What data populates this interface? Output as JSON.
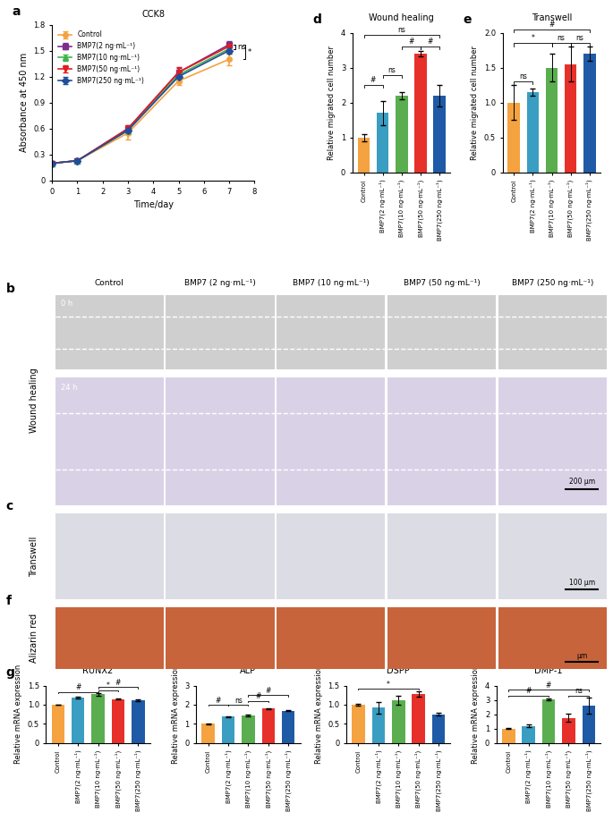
{
  "chart_data": [
    {
      "panel": "a",
      "type": "line",
      "title": "CCK8",
      "x_label": "Time/day",
      "y_label": "Absorbance at 450 nm",
      "x": [
        0,
        1,
        3,
        5,
        7
      ],
      "xlim": [
        0,
        8
      ],
      "xticks": [
        0,
        1,
        2,
        3,
        4,
        5,
        6,
        7,
        8
      ],
      "ylim": [
        0,
        1.8
      ],
      "yticks": [
        0,
        0.3,
        0.6,
        0.9,
        1.2,
        1.5,
        1.8
      ],
      "legend": "upper left",
      "series": [
        {
          "name": "Control",
          "color": "#F4A340",
          "marker": "circle",
          "values": [
            0.2,
            0.23,
            0.55,
            1.15,
            1.4
          ],
          "errors": [
            0.01,
            0.01,
            0.08,
            0.05,
            0.07
          ]
        },
        {
          "name": "BMP7(2 ng·mL⁻¹)",
          "color": "#7B2D8E",
          "marker": "square",
          "values": [
            0.2,
            0.23,
            0.6,
            1.25,
            1.57
          ],
          "errors": [
            0.01,
            0.01,
            0.04,
            0.05,
            0.04
          ]
        },
        {
          "name": "BMP7(10 ng·mL⁻¹)",
          "color": "#3CB44B",
          "marker": "triangle_up",
          "values": [
            0.2,
            0.23,
            0.58,
            1.22,
            1.52
          ],
          "errors": [
            0.01,
            0.01,
            0.04,
            0.05,
            0.04
          ]
        },
        {
          "name": "BMP7(50 ng·mL⁻¹)",
          "color": "#E41A1C",
          "marker": "triangle_down",
          "values": [
            0.2,
            0.23,
            0.6,
            1.25,
            1.55
          ],
          "errors": [
            0.01,
            0.01,
            0.04,
            0.06,
            0.04
          ]
        },
        {
          "name": "BMP7(250 ng·mL⁻¹)",
          "color": "#1F4E9C",
          "marker": "diamond",
          "values": [
            0.2,
            0.23,
            0.58,
            1.2,
            1.5
          ],
          "errors": [
            0.01,
            0.01,
            0.04,
            0.05,
            0.04
          ]
        }
      ],
      "significance": [
        {
          "text": "ns",
          "x": 7,
          "y": [
            1.52,
            1.57
          ]
        },
        {
          "text": "*",
          "x": 7,
          "y": [
            1.4,
            1.57
          ]
        }
      ]
    },
    {
      "panel": "d",
      "type": "bar",
      "title": "Wound healing",
      "y_label": "Relative migrated cell number",
      "categories": [
        "Control",
        "BMP7(2 ng·mL⁻¹)",
        "BMP7(10 ng·mL⁻¹)",
        "BMP7(50 ng·mL⁻¹)",
        "BMP7(250 ng·mL⁻¹)"
      ],
      "values": [
        1.0,
        1.7,
        2.2,
        3.4,
        2.2
      ],
      "errors": [
        0.1,
        0.35,
        0.1,
        0.08,
        0.3
      ],
      "colors": [
        "#F4A340",
        "#3A9EC2",
        "#5BAE4F",
        "#E8302A",
        "#1F5AA6"
      ],
      "ylim": [
        0,
        4
      ],
      "yticks": [
        0,
        1,
        2,
        3,
        4
      ],
      "significance": [
        {
          "pair": [
            0,
            1
          ],
          "y": 2.5,
          "text": "#"
        },
        {
          "pair": [
            1,
            2
          ],
          "y": 2.8,
          "text": "ns"
        },
        {
          "pair": [
            2,
            3
          ],
          "y": 3.6,
          "text": "#"
        },
        {
          "pair": [
            3,
            4
          ],
          "y": 3.6,
          "text": "#"
        },
        {
          "pair": [
            0,
            4
          ],
          "y": 3.95,
          "text": "ns"
        }
      ]
    },
    {
      "panel": "e",
      "type": "bar",
      "title": "Transwell",
      "y_label": "Relative migrated cell number",
      "categories": [
        "Control",
        "BMP7(2 ng·mL⁻¹)",
        "BMP7(10 ng·mL⁻¹)",
        "BMP7(50 ng·mL⁻¹)",
        "BMP7(250 ng·mL⁻¹)"
      ],
      "values": [
        1.0,
        1.15,
        1.5,
        1.55,
        1.7
      ],
      "errors": [
        0.25,
        0.05,
        0.2,
        0.25,
        0.1
      ],
      "colors": [
        "#F4A340",
        "#3A9EC2",
        "#5BAE4F",
        "#E8302A",
        "#1F5AA6"
      ],
      "ylim": [
        0,
        2
      ],
      "yticks": [
        0,
        0.5,
        {
          "value": 1,
          "label": "1.0"
        },
        1.5,
        {
          "value": 2,
          "label": "2.0"
        }
      ],
      "significance": [
        {
          "pair": [
            0,
            1
          ],
          "y": 1.3,
          "text": "ns"
        },
        {
          "pair": [
            0,
            2
          ],
          "y": 1.85,
          "text": "*"
        },
        {
          "pair": [
            2,
            3
          ],
          "y": 1.85,
          "text": "ns"
        },
        {
          "pair": [
            3,
            4
          ],
          "y": 1.85,
          "text": "ns"
        },
        {
          "pair": [
            0,
            4
          ],
          "y": 2.05,
          "text": "#"
        }
      ]
    },
    {
      "panel": "g",
      "type": "bar",
      "title": "RUNX2",
      "y_label": "Relative mRNA expression",
      "categories": [
        "Control",
        "BMP7(2 ng·mL⁻¹)",
        "BMP7(10 ng·mL⁻¹)",
        "BMP7(50 ng·mL⁻¹)",
        "BMP7(250 ng·mL⁻¹)"
      ],
      "values": [
        1.0,
        1.18,
        1.27,
        1.15,
        1.12
      ],
      "errors": [
        0.01,
        0.02,
        0.03,
        0.02,
        0.02
      ],
      "colors": [
        "#F4A340",
        "#3A9EC2",
        "#5BAE4F",
        "#E8302A",
        "#1F5AA6"
      ],
      "ylim": [
        0,
        1.5
      ],
      "yticks": [
        0,
        0.5,
        {
          "value": 1,
          "label": "1.0"
        },
        1.5
      ],
      "significance": [
        {
          "pair": [
            0,
            2
          ],
          "y": 1.33,
          "text": "#"
        },
        {
          "pair": [
            2,
            3
          ],
          "y": 1.38,
          "text": "*"
        },
        {
          "pair": [
            2,
            4
          ],
          "y": 1.46,
          "text": "#"
        }
      ]
    },
    {
      "type": "bar",
      "title": "ALP",
      "y_label": "Relative mRNA expression",
      "categories": [
        "Control",
        "BMP7(2 ng·mL⁻¹)",
        "BMP7(10 ng·mL⁻¹)",
        "BMP7(50 ng·mL⁻¹)",
        "BMP7(250 ng·mL⁻¹)"
      ],
      "values": [
        1.0,
        1.38,
        1.45,
        1.8,
        1.68
      ],
      "errors": [
        0.01,
        0.03,
        0.04,
        0.03,
        0.03
      ],
      "colors": [
        "#F4A340",
        "#3A9EC2",
        "#5BAE4F",
        "#E8302A",
        "#1F5AA6"
      ],
      "ylim": [
        0,
        3
      ],
      "yticks": [
        0,
        1,
        2,
        3
      ],
      "significance": [
        {
          "pair": [
            0,
            1
          ],
          "y": 2.0,
          "text": "#"
        },
        {
          "pair": [
            1,
            2
          ],
          "y": 2.0,
          "text": "ns"
        },
        {
          "pair": [
            2,
            3
          ],
          "y": 2.2,
          "text": "#"
        },
        {
          "pair": [
            2,
            4
          ],
          "y": 2.5,
          "text": "#"
        }
      ]
    },
    {
      "type": "bar",
      "title": "DSPP",
      "y_label": "Relative mRNA expression",
      "categories": [
        "Control",
        "BMP7(2 ng·mL⁻¹)",
        "BMP7(10 ng·mL⁻¹)",
        "BMP7(50 ng·mL⁻¹)",
        "BMP7(250 ng·mL⁻¹)"
      ],
      "values": [
        1.0,
        0.92,
        1.12,
        1.28,
        0.75
      ],
      "errors": [
        0.02,
        0.15,
        0.12,
        0.06,
        0.03
      ],
      "colors": [
        "#F4A340",
        "#3A9EC2",
        "#5BAE4F",
        "#E8302A",
        "#1F5AA6"
      ],
      "ylim": [
        0,
        1.5
      ],
      "yticks": [
        0,
        0.5,
        {
          "value": 1,
          "label": "1.0"
        },
        1.5
      ],
      "significance": [
        {
          "pair": [
            0,
            3
          ],
          "y": 1.42,
          "text": "*"
        }
      ]
    },
    {
      "type": "bar",
      "title": "DMP-1",
      "y_label": "Relative mRNA expression",
      "categories": [
        "Control",
        "BMP7(2 ng·mL⁻¹)",
        "BMP7(10 ng·mL⁻¹)",
        "BMP7(50 ng·mL⁻¹)",
        "BMP7(250 ng·mL⁻¹)"
      ],
      "values": [
        1.0,
        1.18,
        3.02,
        1.75,
        2.6
      ],
      "errors": [
        0.02,
        0.1,
        0.07,
        0.3,
        0.55
      ],
      "colors": [
        "#F4A340",
        "#3A9EC2",
        "#5BAE4F",
        "#E8302A",
        "#1F5AA6"
      ],
      "ylim": [
        0,
        4
      ],
      "yticks": [
        0,
        1,
        2,
        3,
        4
      ],
      "significance": [
        {
          "pair": [
            0,
            2
          ],
          "y": 3.3,
          "text": "#"
        },
        {
          "pair": [
            3,
            4
          ],
          "y": 3.3,
          "text": "ns"
        },
        {
          "pair": [
            0,
            4
          ],
          "y": 3.7,
          "text": "#"
        }
      ]
    }
  ],
  "image_panels": {
    "columns": [
      "Control",
      "BMP7 (2 ng·mL⁻¹)",
      "BMP7 (10 ng·mL⁻¹)",
      "BMP7 (50 ng·mL⁻¹)",
      "BMP7 (250 ng·mL⁻¹)"
    ],
    "rows": [
      {
        "panel": "b",
        "label": "Wound healing",
        "times": [
          "0 h",
          "24 h"
        ],
        "scale_bar": "200 μm"
      },
      {
        "panel": "c",
        "label": "Transwell",
        "scale_bar": "100 μm"
      },
      {
        "panel": "f",
        "label": "Alizarin red",
        "scale_bar": "μm"
      }
    ]
  }
}
